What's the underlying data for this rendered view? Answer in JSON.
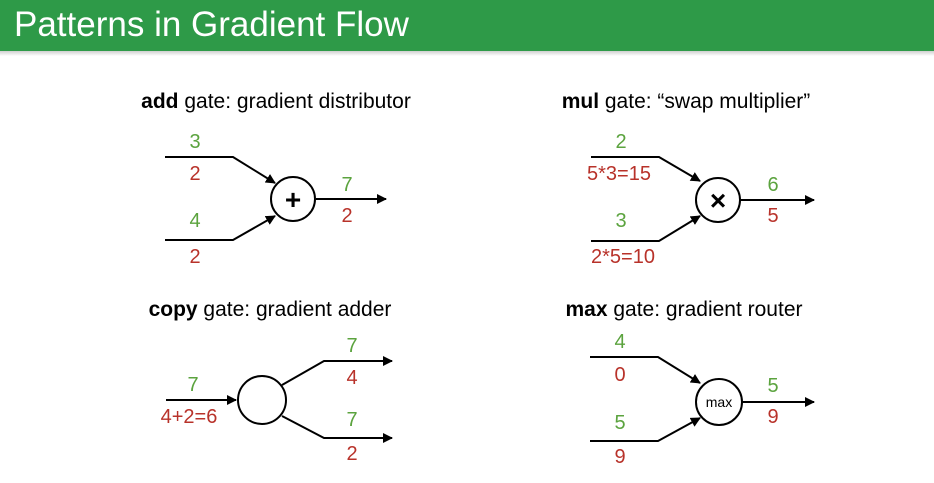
{
  "header": {
    "title": "Patterns in Gradient Flow"
  },
  "colors": {
    "header_bg": "#2e9a48",
    "forward": "#5ba33e",
    "backward": "#b8322a"
  },
  "panels": {
    "add": {
      "title_bold": "add",
      "title_rest": " gate: gradient distributor",
      "gate_symbol": "+",
      "in1_forward": "3",
      "in1_backward": "2",
      "in2_forward": "4",
      "in2_backward": "2",
      "out_forward": "7",
      "out_backward": "2"
    },
    "mul": {
      "title_bold": "mul",
      "title_rest": " gate: “swap multiplier”",
      "gate_symbol": "×",
      "in1_forward": "2",
      "in1_backward": "5*3=15",
      "in2_forward": "3",
      "in2_backward": "2*5=10",
      "out_forward": "6",
      "out_backward": "5"
    },
    "copy": {
      "title_bold": "copy",
      "title_rest": " gate: gradient adder",
      "in_forward": "7",
      "in_backward": "4+2=6",
      "out1_forward": "7",
      "out1_backward": "4",
      "out2_forward": "7",
      "out2_backward": "2"
    },
    "max": {
      "title_bold": "max",
      "title_rest": " gate: gradient router",
      "gate_symbol": "max",
      "in1_forward": "4",
      "in1_backward": "0",
      "in2_forward": "5",
      "in2_backward": "9",
      "out_forward": "5",
      "out_backward": "9"
    }
  }
}
